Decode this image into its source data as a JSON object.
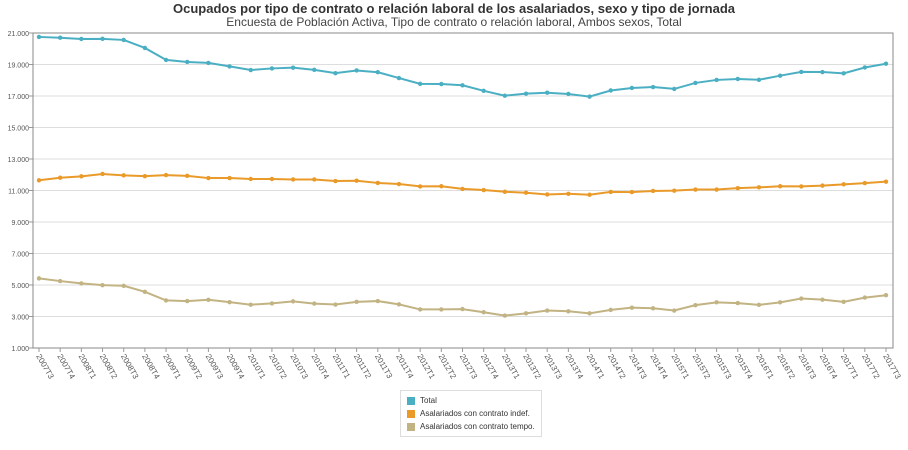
{
  "chart_data": {
    "type": "line",
    "title": "Ocupados por tipo de contrato o relación laboral de los asalariados, sexo y tipo de jornada",
    "subtitle": "Encuesta de Población Activa, Tipo de contrato o relación laboral, Ambos sexos, Total",
    "ylim": [
      1000,
      21000
    ],
    "yticks": [
      "1.000",
      "3.000",
      "5.000",
      "7.000",
      "9.000",
      "11.000",
      "13.000",
      "15.000",
      "17.000",
      "19.000",
      "21.000"
    ],
    "ytick_values": [
      1000,
      3000,
      5000,
      7000,
      9000,
      11000,
      13000,
      15000,
      17000,
      19000,
      21000
    ],
    "grid": true,
    "legend_position": "bottom-center",
    "categories": [
      "2007T3",
      "2007T4",
      "2008T1",
      "2008T2",
      "2008T3",
      "2008T4",
      "2009T1",
      "2009T2",
      "2009T3",
      "2009T4",
      "2010T1",
      "2010T2",
      "2010T3",
      "2010T4",
      "2011T1",
      "2011T2",
      "2011T3",
      "2011T4",
      "2012T1",
      "2012T2",
      "2012T3",
      "2012T4",
      "2013T1",
      "2013T2",
      "2013T3",
      "2013T4",
      "2014T1",
      "2014T2",
      "2014T3",
      "2014T4",
      "2015T1",
      "2015T2",
      "2015T3",
      "2015T4",
      "2016T1",
      "2016T2",
      "2016T3",
      "2016T4",
      "2017T1",
      "2017T2",
      "2017T3"
    ],
    "series": [
      {
        "name": "Total",
        "color": "#4bafc4",
        "values": [
          20750,
          20700,
          20620,
          20630,
          20560,
          20050,
          19290,
          19160,
          19100,
          18880,
          18650,
          18750,
          18800,
          18660,
          18450,
          18620,
          18510,
          18140,
          17770,
          17760,
          17680,
          17330,
          17020,
          17150,
          17210,
          17130,
          16960,
          17350,
          17510,
          17570,
          17450,
          17830,
          18020,
          18080,
          18030,
          18290,
          18530,
          18520,
          18440,
          18810,
          19050
        ]
      },
      {
        "name": "Asalariados con contrato indef.",
        "color": "#e99a29",
        "values": [
          11650,
          11810,
          11900,
          12050,
          11960,
          11910,
          11980,
          11930,
          11790,
          11790,
          11730,
          11730,
          11700,
          11700,
          11600,
          11620,
          11480,
          11410,
          11260,
          11270,
          11100,
          11030,
          10920,
          10860,
          10750,
          10790,
          10730,
          10910,
          10900,
          10970,
          10990,
          11060,
          11060,
          11150,
          11200,
          11270,
          11260,
          11310,
          11390,
          11470,
          11560
        ]
      },
      {
        "name": "Asalariados con contrato tempo.",
        "color": "#c2b383",
        "values": [
          5420,
          5250,
          5100,
          4990,
          4950,
          4570,
          4020,
          3980,
          4060,
          3910,
          3750,
          3830,
          3960,
          3820,
          3760,
          3930,
          3980,
          3770,
          3450,
          3450,
          3470,
          3270,
          3060,
          3200,
          3380,
          3330,
          3200,
          3420,
          3560,
          3520,
          3380,
          3720,
          3900,
          3850,
          3740,
          3900,
          4140,
          4070,
          3930,
          4200,
          4350
        ]
      }
    ]
  }
}
